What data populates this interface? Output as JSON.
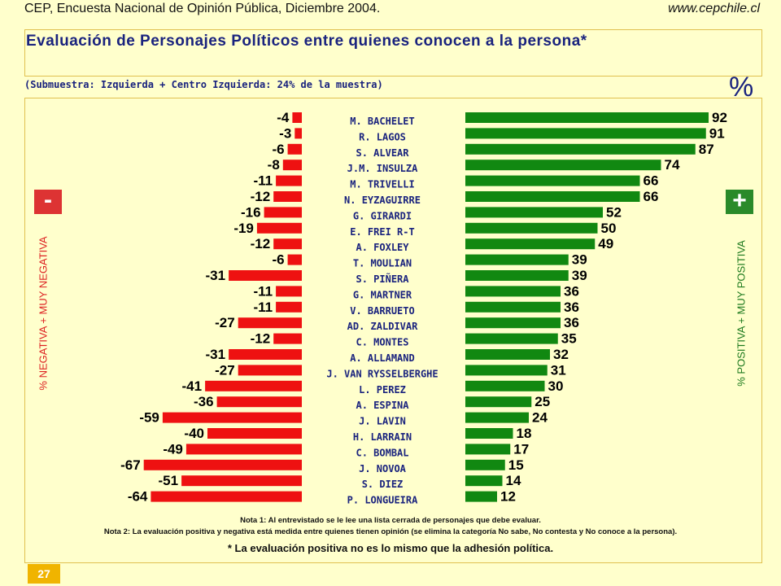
{
  "header": {
    "source": "CEP, Encuesta Nacional de Opinión Pública, Diciembre 2004.",
    "url": "www.cepchile.cl"
  },
  "title": "Evaluación de Personajes Políticos entre quienes conocen a la persona*",
  "subtitle": "(Submuestra: Izquierda + Centro Izquierda: 24% de la muestra)",
  "percent_symbol": "%",
  "negative_badge": "-",
  "positive_badge": "+",
  "negative_axis_label": "% NEGATIVA + MUY NEGATIVA",
  "positive_axis_label": "% POSITIVA + MUY POSITIVA",
  "colors": {
    "negative": "#ee1111",
    "positive": "#118811",
    "text_dark": "#1a237e"
  },
  "chart_data": {
    "type": "bar",
    "categories": [
      "M. BACHELET",
      "R. LAGOS",
      "S. ALVEAR",
      "J.M. INSULZA",
      "M. TRIVELLI",
      "N. EYZAGUIRRE",
      "G. GIRARDI",
      "E. FREI R-T",
      "A. FOXLEY",
      "T. MOULIAN",
      "S. PIÑERA",
      "G. MARTNER",
      "V. BARRUETO",
      "AD. ZALDIVAR",
      "C. MONTES",
      "A. ALLAMAND",
      "J. VAN RYSSELBERGHE",
      "L. PEREZ",
      "A. ESPINA",
      "J. LAVIN",
      "H. LARRAIN",
      "C. BOMBAL",
      "J. NOVOA",
      "S. DIEZ",
      "P. LONGUEIRA"
    ],
    "series": [
      {
        "name": "% NEGATIVA + MUY NEGATIVA",
        "values": [
          -4,
          -3,
          -6,
          -8,
          -11,
          -12,
          -16,
          -19,
          -12,
          -6,
          -31,
          -11,
          -11,
          -27,
          -12,
          -31,
          -27,
          -41,
          -36,
          -59,
          -40,
          -49,
          -67,
          -51,
          -64
        ]
      },
      {
        "name": "% POSITIVA + MUY POSITIVA",
        "values": [
          92,
          91,
          87,
          74,
          66,
          66,
          52,
          50,
          49,
          39,
          39,
          36,
          36,
          36,
          35,
          32,
          31,
          30,
          25,
          24,
          18,
          17,
          15,
          14,
          12
        ]
      }
    ]
  },
  "notes": {
    "note1": "Nota 1: Al entrevistado se le lee una lista cerrada de personajes que debe evaluar.",
    "note2": "Nota 2: La evaluación positiva y negativa está medida entre quienes tienen opinión (se elimina la categoría No sabe, No contesta y No conoce a la persona).",
    "footnote": "* La evaluación positiva no es lo mismo que la adhesión política."
  },
  "page_number": "27"
}
